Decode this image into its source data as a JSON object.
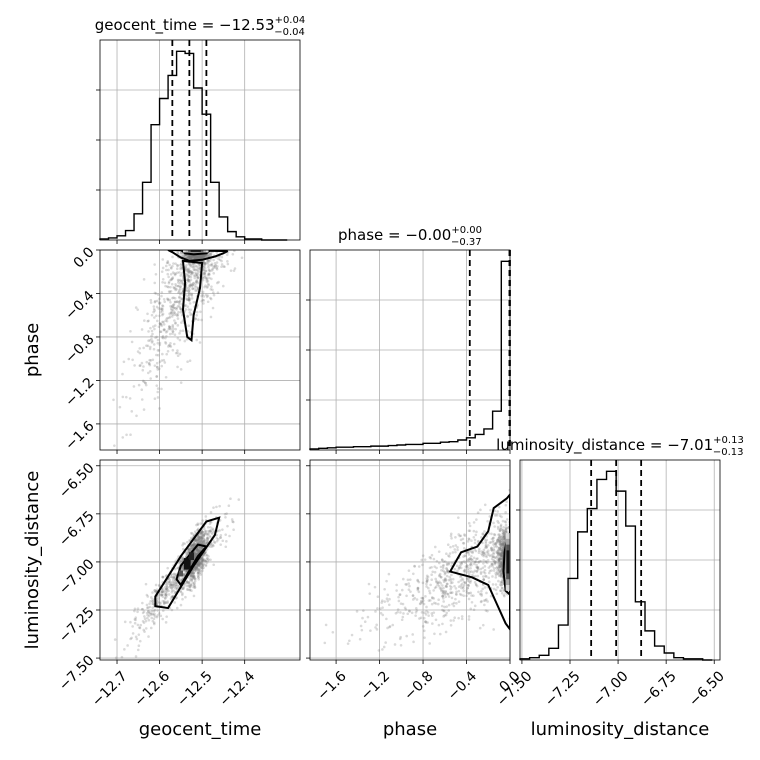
{
  "chart_data": {
    "type": "corner",
    "parameters": [
      {
        "key": "geocent_time",
        "label": "geocent_time",
        "range": [
          -12.74,
          -12.27
        ],
        "ticks": [
          -12.7,
          -12.6,
          -12.5,
          -12.4
        ],
        "tick_labels": [
          "−12.7",
          "−12.6",
          "−12.5",
          "−12.4"
        ],
        "title": {
          "main": "geocent_time = −12.53",
          "plus": "+0.04",
          "minus": "−0.04"
        },
        "quantiles": [
          -12.57,
          -12.53,
          -12.49
        ],
        "hist": {
          "edges": [
            -12.74,
            -12.72,
            -12.7,
            -12.68,
            -12.66,
            -12.64,
            -12.62,
            -12.6,
            -12.58,
            -12.56,
            -12.54,
            -12.52,
            -12.5,
            -12.48,
            -12.46,
            -12.44,
            -12.42,
            -12.4,
            -12.38,
            -12.36,
            -12.34,
            -12.32,
            -12.3
          ],
          "counts": [
            1,
            2,
            4,
            9,
            25,
            55,
            110,
            135,
            157,
            180,
            178,
            145,
            120,
            55,
            22,
            8,
            3,
            1,
            1,
            0,
            0,
            0
          ]
        }
      },
      {
        "key": "phase",
        "label": "phase",
        "range": [
          -1.84,
          0.0
        ],
        "ticks": [
          -1.6,
          -1.2,
          -0.8,
          -0.4,
          0.0
        ],
        "tick_labels": [
          "−1.6",
          "−1.2",
          "−0.8",
          "−0.4",
          "0.0"
        ],
        "title": {
          "main": "phase = −0.00",
          "plus": "+0.00",
          "minus": "−0.37"
        },
        "quantiles": [
          -0.37,
          -0.005,
          0.0
        ],
        "hist": {
          "edges": [
            -1.84,
            -1.76,
            -1.68,
            -1.6,
            -1.52,
            -1.44,
            -1.36,
            -1.28,
            -1.2,
            -1.12,
            -1.04,
            -0.96,
            -0.88,
            -0.8,
            -0.72,
            -0.64,
            -0.56,
            -0.48,
            -0.4,
            -0.32,
            -0.24,
            -0.16,
            -0.08,
            0.0
          ],
          "counts": [
            2,
            3,
            4,
            5,
            5,
            6,
            6,
            7,
            7,
            8,
            9,
            10,
            10,
            12,
            12,
            14,
            15,
            18,
            22,
            28,
            38,
            70,
            340
          ]
        }
      },
      {
        "key": "luminosity_distance",
        "label": "luminosity_distance",
        "range": [
          -7.51,
          -6.47
        ],
        "ticks": [
          -7.5,
          -7.25,
          -7.0,
          -6.75,
          -6.5
        ],
        "tick_labels": [
          "−7.50",
          "−7.25",
          "−7.00",
          "−6.75",
          "−6.50"
        ],
        "title": {
          "main": "luminosity_distance = −7.01",
          "plus": "+0.13",
          "minus": "−0.13"
        },
        "quantiles": [
          -7.14,
          -7.01,
          -6.88
        ],
        "hist": {
          "edges": [
            -7.51,
            -7.46,
            -7.41,
            -7.36,
            -7.31,
            -7.26,
            -7.21,
            -7.16,
            -7.11,
            -7.06,
            -7.01,
            -6.96,
            -6.91,
            -6.86,
            -6.81,
            -6.76,
            -6.71,
            -6.66,
            -6.61,
            -6.56,
            -6.51
          ],
          "counts": [
            1,
            2,
            4,
            10,
            30,
            70,
            110,
            130,
            155,
            162,
            145,
            115,
            50,
            25,
            12,
            6,
            2,
            1,
            1,
            0
          ]
        }
      }
    ],
    "pairs": [
      {
        "x": "geocent_time",
        "y": "phase"
      },
      {
        "x": "geocent_time",
        "y": "luminosity_distance"
      },
      {
        "x": "phase",
        "y": "luminosity_distance"
      }
    ],
    "grid": true,
    "legend": "none"
  }
}
